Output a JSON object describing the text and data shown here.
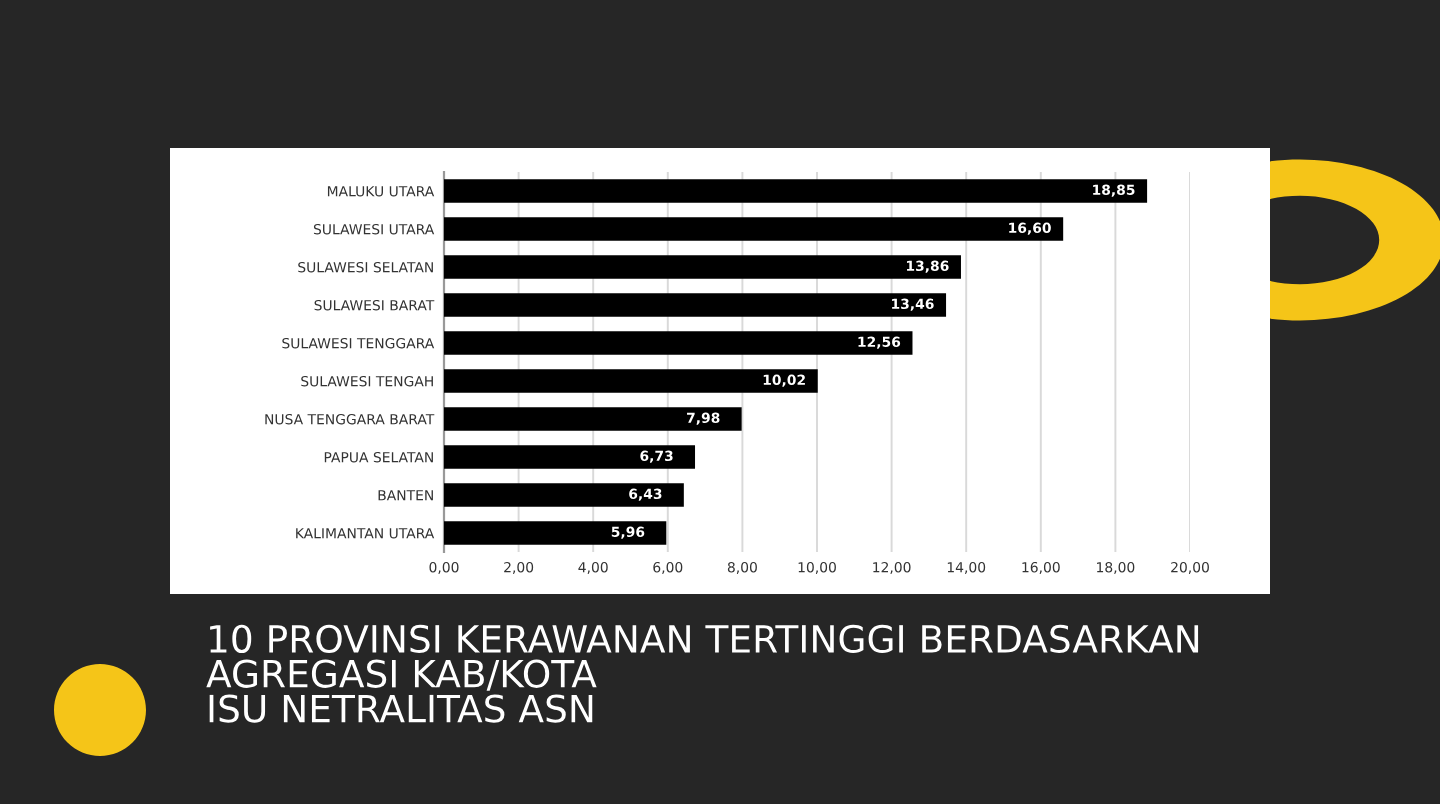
{
  "chart_data": {
    "type": "bar",
    "orientation": "horizontal",
    "title": "10 PROVINSI KERAWANAN TERTINGGI BERDASARKAN\nAGREGASI KAB/KOTA\nISU NETRALITAS ASN",
    "categories": [
      "MALUKU UTARA",
      "SULAWESI UTARA",
      "SULAWESI SELATAN",
      "SULAWESI BARAT",
      "SULAWESI TENGGARA",
      "SULAWESI TENGAH",
      "NUSA TENGGARA BARAT",
      "PAPUA SELATAN",
      "BANTEN",
      "KALIMANTAN UTARA"
    ],
    "values": [
      18.85,
      16.6,
      13.86,
      13.46,
      12.56,
      10.02,
      7.98,
      6.73,
      6.43,
      5.96
    ],
    "value_labels": [
      "18,85",
      "16,60",
      "13,86",
      "13,46",
      "12,56",
      "10,02",
      "7,98",
      "6,73",
      "6,43",
      "5,96"
    ],
    "color": "#000000",
    "xlim": [
      0,
      20
    ],
    "xticks": [
      {
        "value": 0,
        "label": "0,00"
      },
      {
        "value": 2,
        "label": "2,00"
      },
      {
        "value": 4,
        "label": "4,00"
      },
      {
        "value": 6,
        "label": "6,00"
      },
      {
        "value": 8,
        "label": "8,00"
      },
      {
        "value": 10,
        "label": "10,00"
      },
      {
        "value": 12,
        "label": "12,00"
      },
      {
        "value": 14,
        "label": "14,00"
      },
      {
        "value": 16,
        "label": "16,00"
      },
      {
        "value": 18,
        "label": "18,00"
      },
      {
        "value": 20,
        "label": "20,00"
      }
    ],
    "grid": "x",
    "legend": false
  }
}
